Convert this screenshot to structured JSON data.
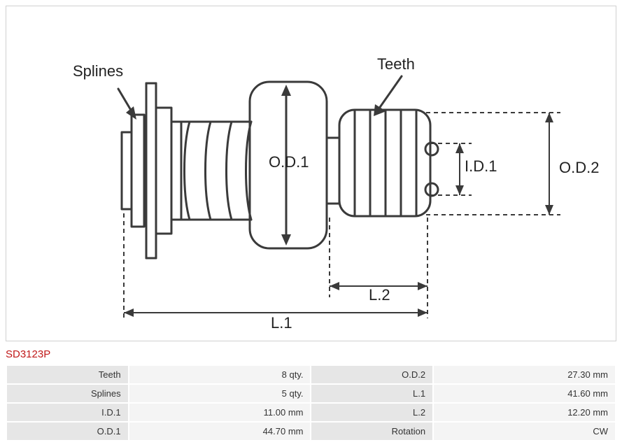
{
  "part_number": "SD3123P",
  "diagram": {
    "labels": {
      "splines": "Splines",
      "teeth": "Teeth",
      "od1": "O.D.1",
      "id1": "I.D.1",
      "od2": "O.D.2",
      "l1": "L.1",
      "l2": "L.2"
    },
    "colors": {
      "stroke": "#3a3a3a",
      "text": "#222222",
      "bg": "#ffffff"
    },
    "stroke_width": 3,
    "dash": "6,5"
  },
  "specs": [
    {
      "label": "Teeth",
      "value": "8 qty.",
      "label2": "O.D.2",
      "value2": "27.30 mm"
    },
    {
      "label": "Splines",
      "value": "5 qty.",
      "label2": "L.1",
      "value2": "41.60 mm"
    },
    {
      "label": "I.D.1",
      "value": "11.00 mm",
      "label2": "L.2",
      "value2": "12.20 mm"
    },
    {
      "label": "O.D.1",
      "value": "44.70 mm",
      "label2": "Rotation",
      "value2": "CW"
    }
  ]
}
